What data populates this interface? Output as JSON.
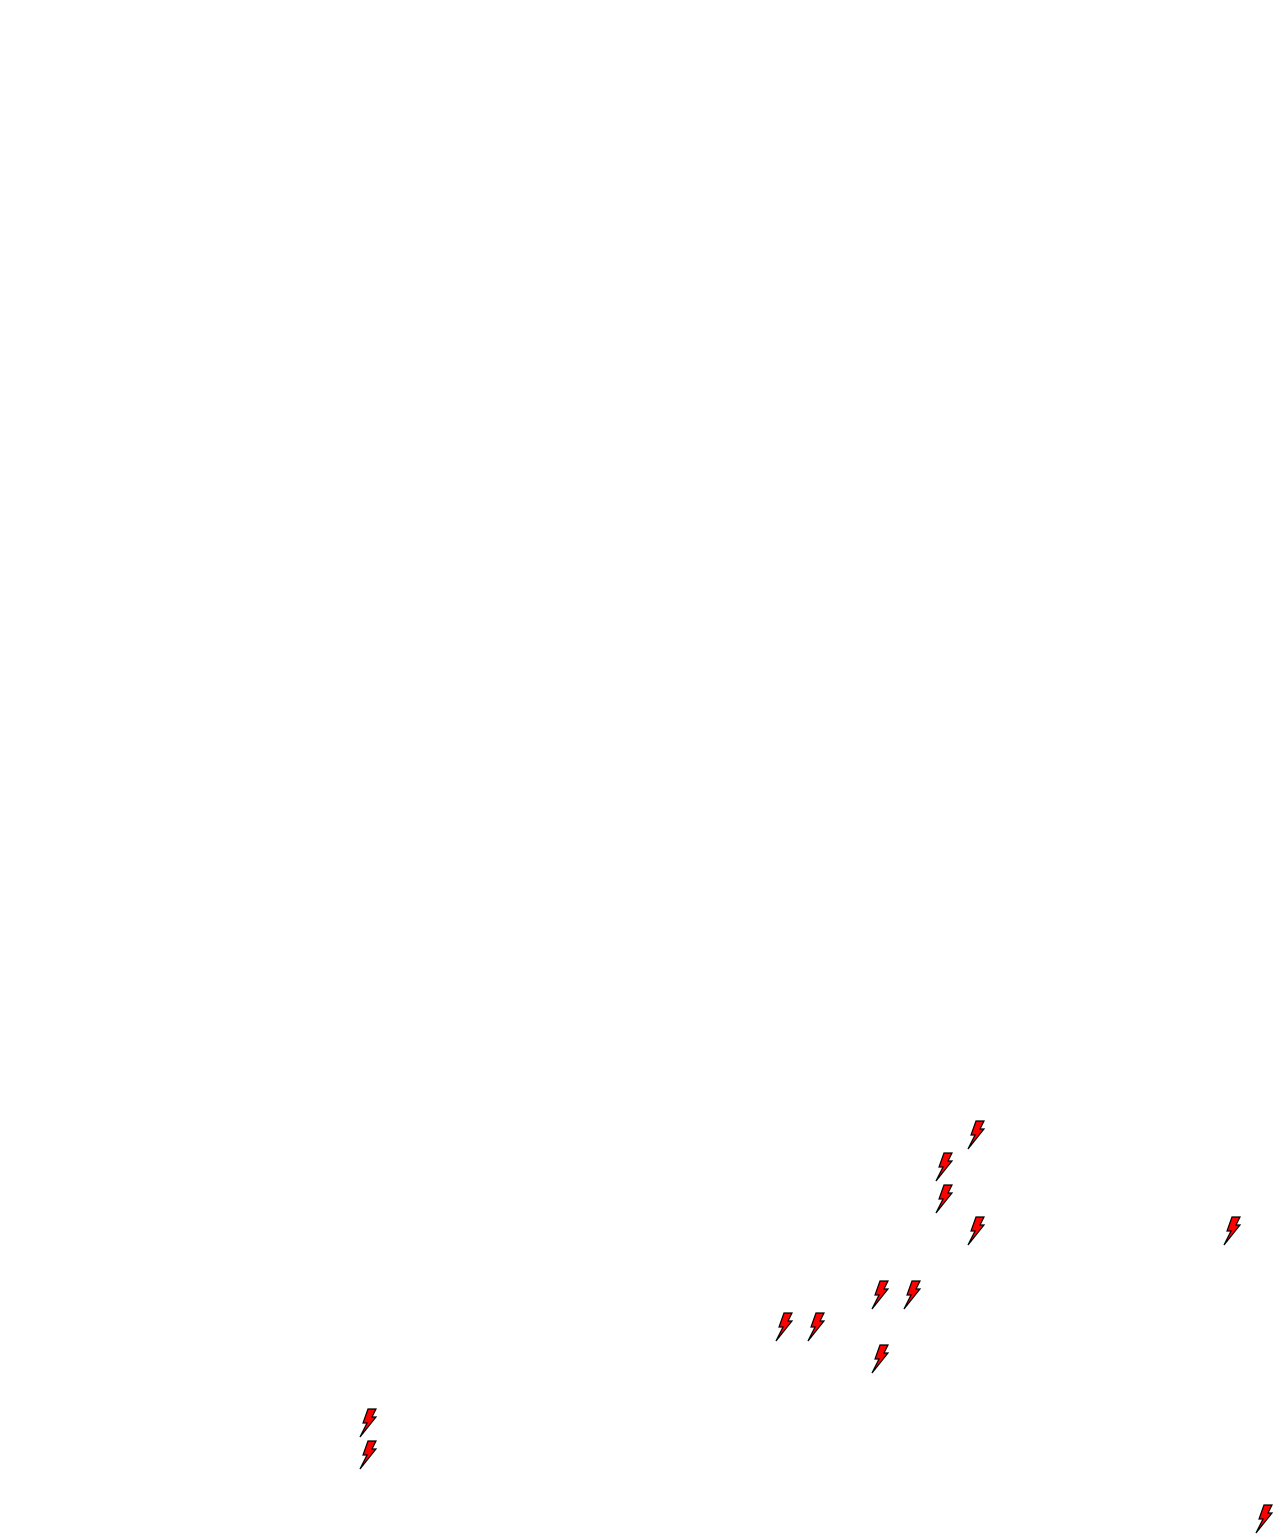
{
  "map": {
    "background_color": "#ffffff",
    "marker_icon": "lightning-bolt-icon",
    "marker_color": "#ff0000",
    "marker_outline_color": "#000000",
    "marker_count": 13
  }
}
